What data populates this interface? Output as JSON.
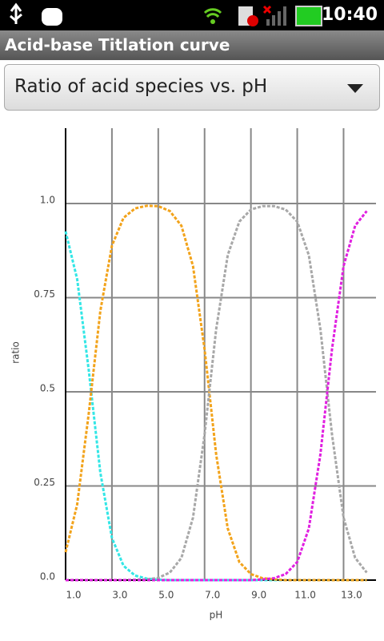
{
  "status_bar": {
    "time": "10:40"
  },
  "app_bar": {
    "title": "Acid-base Titlation curve"
  },
  "spinner": {
    "selected": "Ratio of acid species vs. pH"
  },
  "chart_data": {
    "type": "line",
    "x_label": "pH",
    "y_label": "ratio",
    "x": [
      1.0,
      1.5,
      2.0,
      2.5,
      3.0,
      3.5,
      4.0,
      4.5,
      5.0,
      5.5,
      6.0,
      6.5,
      7.0,
      7.5,
      8.0,
      8.5,
      9.0,
      9.5,
      10.0,
      10.5,
      11.0,
      11.5,
      12.0,
      12.5,
      13.0,
      13.5,
      14.0
    ],
    "series": [
      {
        "color": "#33e6e6",
        "values": [
          0.926,
          0.799,
          0.557,
          0.285,
          0.112,
          0.038,
          0.012,
          0.004,
          0.001,
          0,
          0,
          0,
          0,
          0,
          0,
          0,
          0,
          0,
          0,
          0,
          0,
          0,
          0,
          0,
          0,
          0,
          0
        ]
      },
      {
        "color": "#f2a31b",
        "values": [
          0.074,
          0.201,
          0.443,
          0.715,
          0.888,
          0.962,
          0.987,
          0.994,
          0.993,
          0.98,
          0.941,
          0.834,
          0.613,
          0.334,
          0.137,
          0.048,
          0.016,
          0.005,
          0.002,
          0,
          0,
          0,
          0,
          0,
          0,
          0,
          0
        ]
      },
      {
        "color": "#a8a8a8",
        "values": [
          0,
          0,
          0,
          0,
          0,
          0,
          0.001,
          0.002,
          0.006,
          0.02,
          0.059,
          0.166,
          0.387,
          0.666,
          0.863,
          0.952,
          0.984,
          0.993,
          0.993,
          0.984,
          0.952,
          0.863,
          0.666,
          0.387,
          0.166,
          0.059,
          0.02
        ]
      },
      {
        "color": "#e020e0",
        "values": [
          0,
          0,
          0,
          0,
          0,
          0,
          0,
          0,
          0,
          0,
          0,
          0,
          0,
          0,
          0,
          0,
          0,
          0.002,
          0.005,
          0.016,
          0.048,
          0.137,
          0.334,
          0.613,
          0.834,
          0.941,
          0.98
        ]
      }
    ],
    "xlim": [
      1,
      14.4
    ],
    "xticks": [
      {
        "value": 1,
        "label": "1.0"
      },
      {
        "value": 3,
        "label": "3.0"
      },
      {
        "value": 5,
        "label": "5.0"
      },
      {
        "value": 7,
        "label": "7.0"
      },
      {
        "value": 9,
        "label": "9.0"
      },
      {
        "value": 11,
        "label": "11.0"
      },
      {
        "value": 13,
        "label": "13.0"
      }
    ],
    "ylim": [
      0,
      1.2
    ],
    "yticks": [
      {
        "value": 0,
        "label": "0.0"
      },
      0.25,
      0.5,
      0.75,
      {
        "value": 1,
        "label": "1.0"
      }
    ],
    "grid": true
  }
}
